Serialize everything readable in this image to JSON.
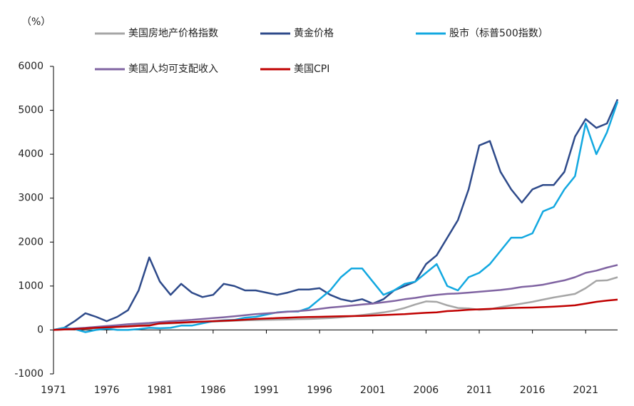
{
  "chart_data": {
    "type": "line",
    "y_unit": "（%）",
    "x": [
      1971,
      1972,
      1973,
      1974,
      1975,
      1976,
      1977,
      1978,
      1979,
      1980,
      1981,
      1982,
      1983,
      1984,
      1985,
      1986,
      1987,
      1988,
      1989,
      1990,
      1991,
      1992,
      1993,
      1994,
      1995,
      1996,
      1997,
      1998,
      1999,
      2000,
      2001,
      2002,
      2003,
      2004,
      2005,
      2006,
      2007,
      2008,
      2009,
      2010,
      2011,
      2012,
      2013,
      2014,
      2015,
      2016,
      2017,
      2018,
      2019,
      2020,
      2021,
      2022,
      2023,
      2024
    ],
    "xlim": [
      1971,
      2024
    ],
    "xticks": [
      1971,
      1976,
      1981,
      1986,
      1991,
      1996,
      2001,
      2006,
      2011,
      2016,
      2021
    ],
    "ylim": [
      -1000,
      6000
    ],
    "yticks": [
      -1000,
      0,
      1000,
      2000,
      3000,
      4000,
      5000,
      6000
    ],
    "series": [
      {
        "name": "美国房地产价格指数",
        "color": "#a6a6a6",
        "values": [
          0,
          10,
          20,
          30,
          40,
          50,
          70,
          90,
          110,
          130,
          140,
          150,
          160,
          170,
          180,
          190,
          200,
          210,
          220,
          225,
          230,
          235,
          240,
          245,
          250,
          260,
          270,
          290,
          310,
          340,
          370,
          400,
          440,
          500,
          580,
          650,
          640,
          560,
          500,
          490,
          460,
          470,
          520,
          560,
          600,
          640,
          690,
          740,
          780,
          820,
          950,
          1120,
          1130,
          1200
        ]
      },
      {
        "name": "黄金价格",
        "color": "#2e4a8a",
        "values": [
          0,
          50,
          200,
          380,
          300,
          200,
          300,
          450,
          900,
          1650,
          1100,
          800,
          1050,
          850,
          750,
          800,
          1050,
          1000,
          900,
          900,
          850,
          800,
          850,
          920,
          920,
          950,
          800,
          700,
          650,
          700,
          600,
          700,
          900,
          1000,
          1100,
          1500,
          1700,
          2100,
          2500,
          3200,
          4200,
          4300,
          3600,
          3200,
          2900,
          3200,
          3300,
          3300,
          3600,
          4400,
          4800,
          4600,
          4700,
          5250
        ]
      },
      {
        "name": "股市（标普500指数）",
        "color": "#12a8e0",
        "values": [
          0,
          50,
          20,
          -50,
          0,
          30,
          0,
          0,
          20,
          50,
          40,
          50,
          100,
          100,
          150,
          200,
          220,
          230,
          280,
          300,
          350,
          400,
          420,
          420,
          500,
          700,
          900,
          1200,
          1400,
          1400,
          1100,
          800,
          900,
          1050,
          1100,
          1300,
          1500,
          1000,
          900,
          1200,
          1300,
          1500,
          1800,
          2100,
          2100,
          2200,
          2700,
          2800,
          3200,
          3500,
          4700,
          4000,
          4500,
          5200
        ]
      },
      {
        "name": "美国人均可支配收入",
        "color": "#8064a2",
        "values": [
          0,
          20,
          35,
          50,
          70,
          90,
          110,
          130,
          145,
          160,
          180,
          200,
          215,
          230,
          250,
          270,
          290,
          310,
          335,
          360,
          375,
          395,
          415,
          430,
          450,
          480,
          510,
          530,
          555,
          580,
          600,
          630,
          660,
          700,
          730,
          770,
          800,
          820,
          830,
          850,
          870,
          890,
          910,
          940,
          980,
          1000,
          1030,
          1080,
          1130,
          1200,
          1300,
          1350,
          1420,
          1480
        ]
      },
      {
        "name": "美国CPI",
        "color": "#c00000",
        "values": [
          0,
          10,
          20,
          35,
          50,
          60,
          70,
          80,
          95,
          100,
          150,
          160,
          170,
          180,
          190,
          200,
          210,
          220,
          235,
          250,
          260,
          270,
          280,
          290,
          295,
          300,
          305,
          310,
          315,
          320,
          330,
          340,
          350,
          360,
          375,
          390,
          400,
          430,
          440,
          460,
          470,
          480,
          490,
          500,
          505,
          510,
          520,
          530,
          545,
          560,
          600,
          640,
          670,
          690
        ]
      }
    ]
  }
}
